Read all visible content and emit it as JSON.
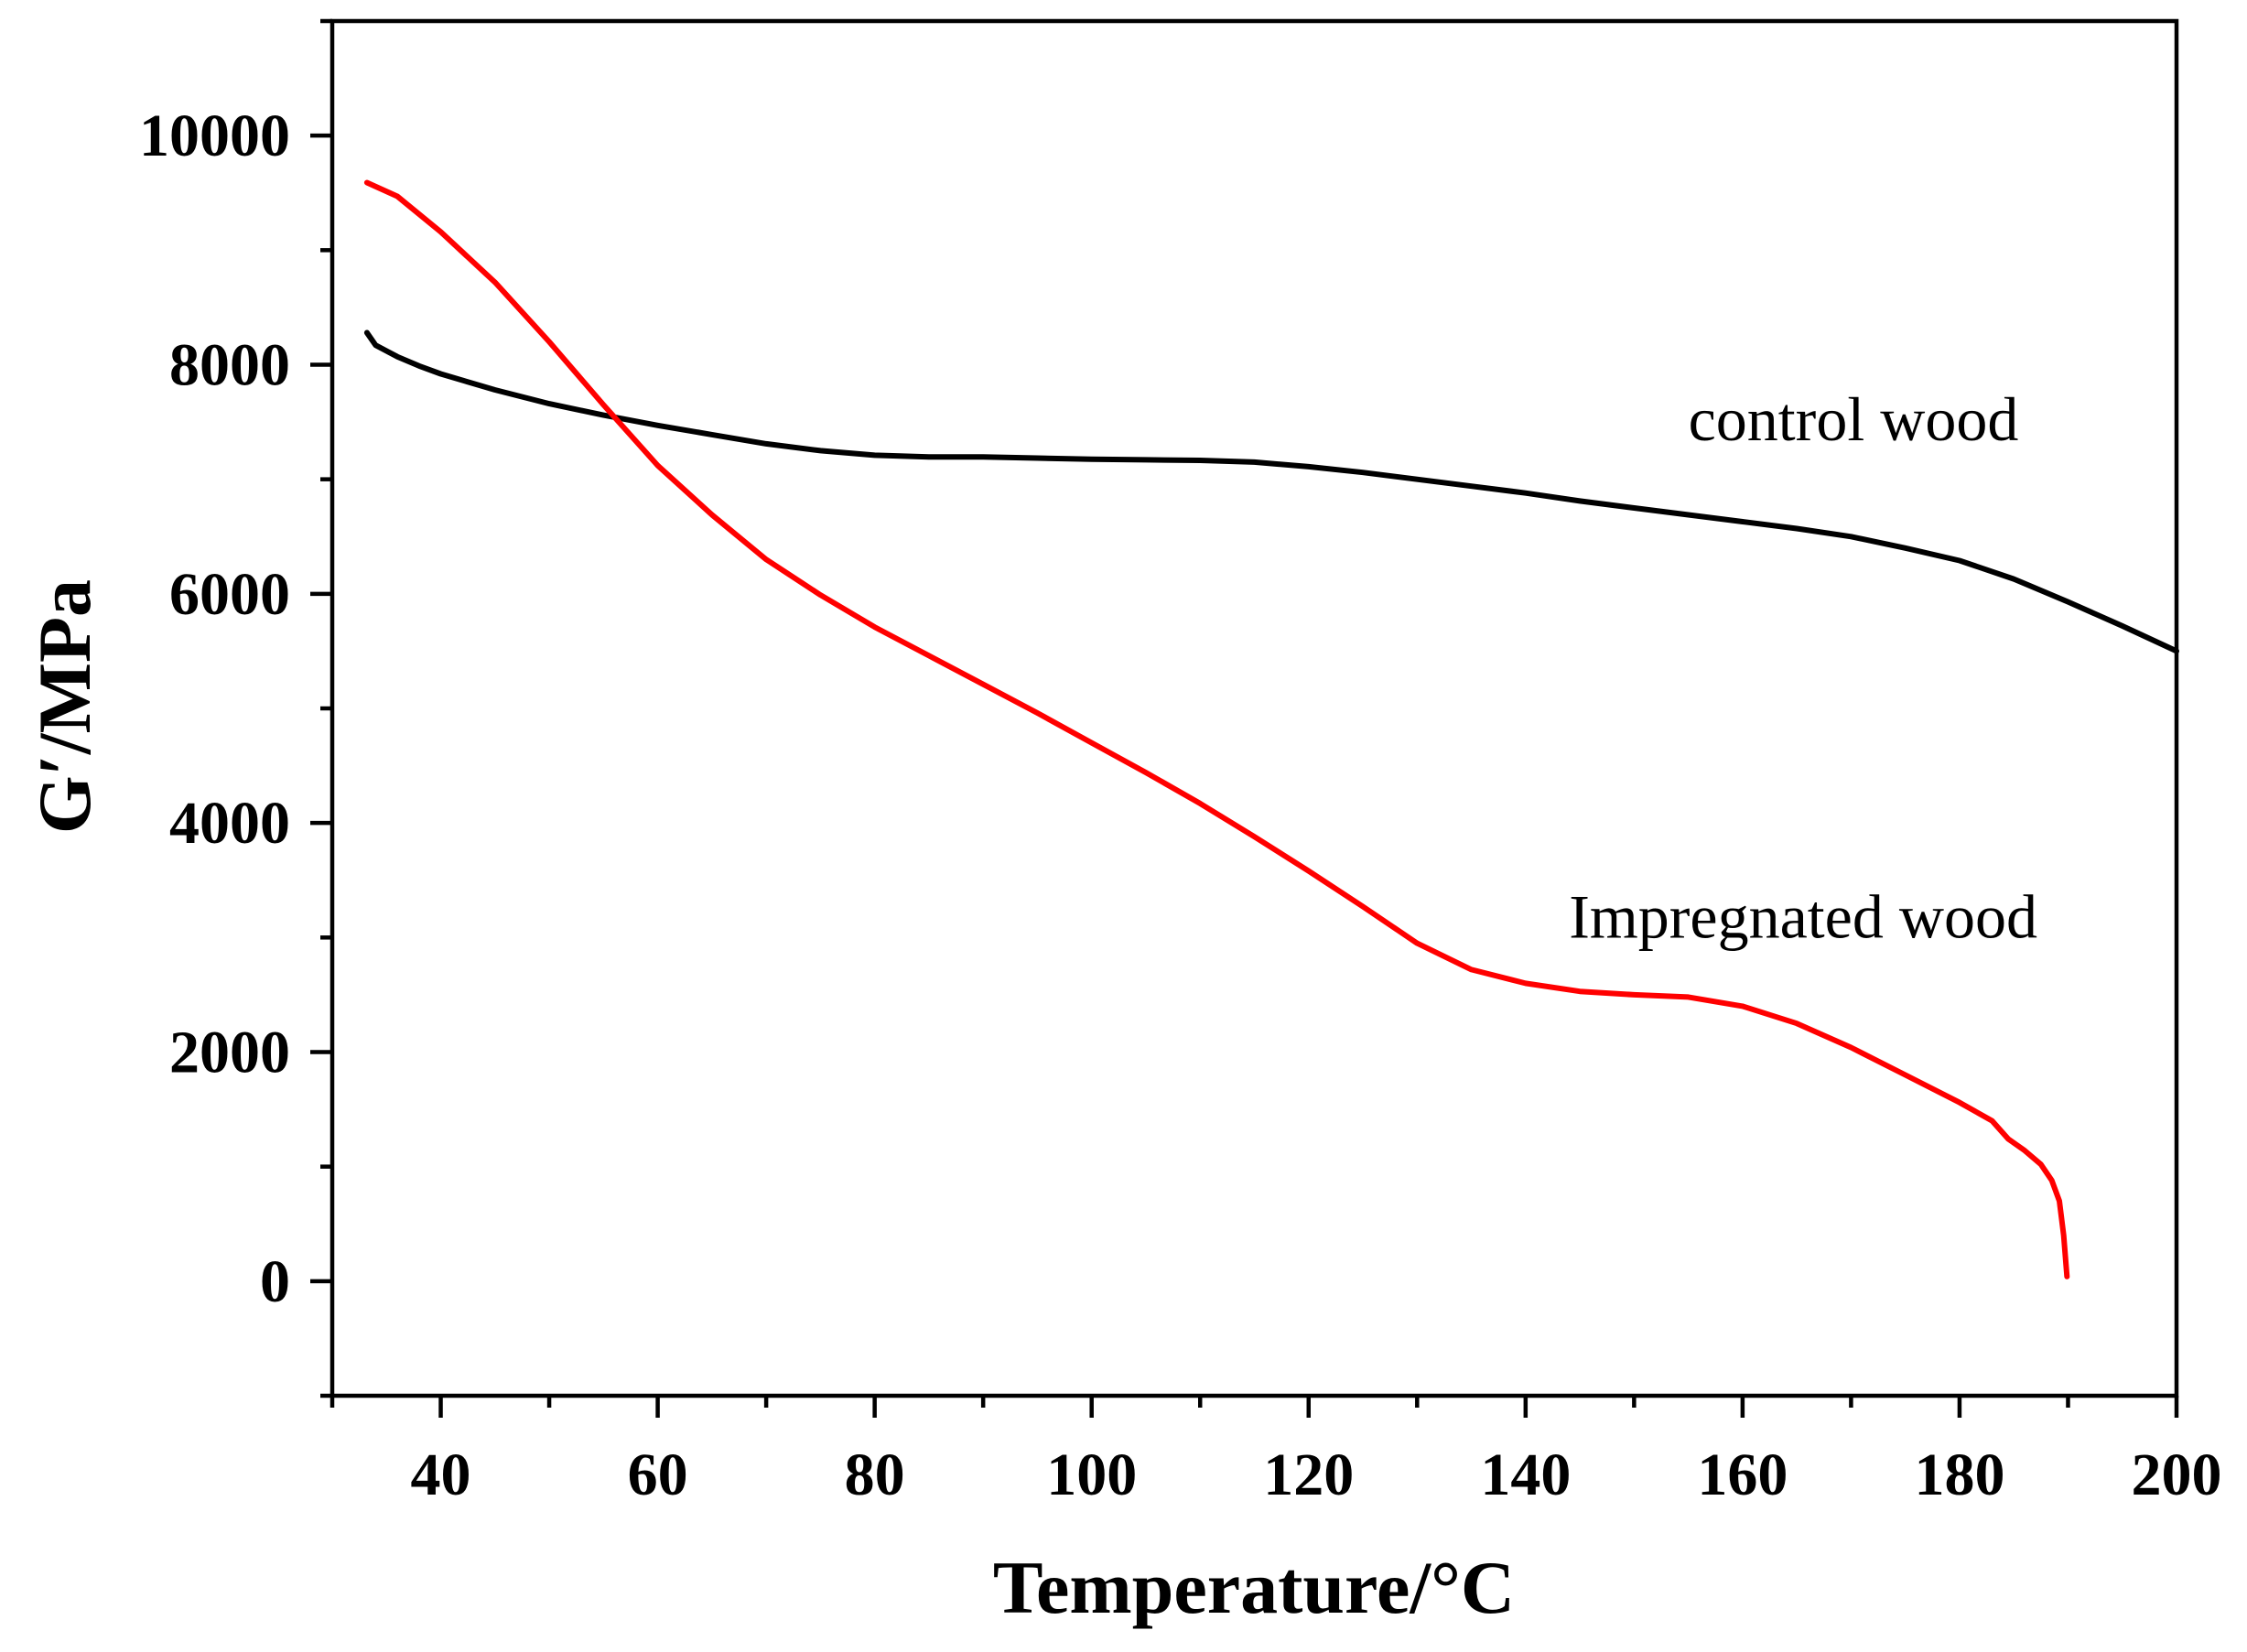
{
  "chart_data": {
    "type": "line",
    "title": "",
    "xlabel": "Temperature/°C",
    "ylabel": "G′/MPa",
    "xlim": [
      30,
      200
    ],
    "ylim": [
      -1000,
      11000
    ],
    "x_ticks": [
      40,
      60,
      80,
      100,
      120,
      140,
      160,
      180,
      200
    ],
    "y_ticks": [
      0,
      2000,
      4000,
      6000,
      8000,
      10000
    ],
    "grid": false,
    "series": [
      {
        "name": "control wood",
        "color": "#000000",
        "points": [
          [
            33.2,
            8280
          ],
          [
            34,
            8170
          ],
          [
            36,
            8070
          ],
          [
            38,
            7990
          ],
          [
            40,
            7920
          ],
          [
            45,
            7780
          ],
          [
            50,
            7660
          ],
          [
            55,
            7560
          ],
          [
            60,
            7470
          ],
          [
            65,
            7390
          ],
          [
            70,
            7310
          ],
          [
            75,
            7250
          ],
          [
            80,
            7210
          ],
          [
            85,
            7195
          ],
          [
            90,
            7195
          ],
          [
            95,
            7185
          ],
          [
            100,
            7175
          ],
          [
            105,
            7170
          ],
          [
            110,
            7165
          ],
          [
            115,
            7150
          ],
          [
            120,
            7110
          ],
          [
            125,
            7060
          ],
          [
            130,
            7000
          ],
          [
            135,
            6940
          ],
          [
            140,
            6880
          ],
          [
            145,
            6810
          ],
          [
            150,
            6750
          ],
          [
            155,
            6690
          ],
          [
            160,
            6630
          ],
          [
            165,
            6570
          ],
          [
            170,
            6500
          ],
          [
            175,
            6400
          ],
          [
            180,
            6290
          ],
          [
            185,
            6130
          ],
          [
            190,
            5930
          ],
          [
            195,
            5720
          ],
          [
            200,
            5500
          ]
        ]
      },
      {
        "name": "Impregnated wood",
        "color": "#ff0000",
        "points": [
          [
            33.2,
            9590
          ],
          [
            36,
            9470
          ],
          [
            40,
            9160
          ],
          [
            45,
            8720
          ],
          [
            50,
            8200
          ],
          [
            55,
            7650
          ],
          [
            60,
            7120
          ],
          [
            65,
            6690
          ],
          [
            70,
            6300
          ],
          [
            75,
            5990
          ],
          [
            80,
            5710
          ],
          [
            85,
            5460
          ],
          [
            90,
            5210
          ],
          [
            95,
            4960
          ],
          [
            100,
            4700
          ],
          [
            105,
            4440
          ],
          [
            110,
            4170
          ],
          [
            115,
            3880
          ],
          [
            120,
            3580
          ],
          [
            125,
            3270
          ],
          [
            130,
            2950
          ],
          [
            135,
            2720
          ],
          [
            140,
            2600
          ],
          [
            145,
            2530
          ],
          [
            150,
            2500
          ],
          [
            155,
            2480
          ],
          [
            160,
            2400
          ],
          [
            165,
            2250
          ],
          [
            170,
            2040
          ],
          [
            175,
            1800
          ],
          [
            180,
            1560
          ],
          [
            183,
            1400
          ],
          [
            184.5,
            1240
          ],
          [
            186,
            1140
          ],
          [
            187.5,
            1020
          ],
          [
            188.5,
            880
          ],
          [
            189.2,
            700
          ],
          [
            189.6,
            400
          ],
          [
            189.9,
            40
          ]
        ]
      }
    ],
    "annotations": [
      {
        "text": "control wood",
        "x": 155,
        "y": 7340
      },
      {
        "text": "Impregnated wood",
        "x": 144,
        "y": 3000
      }
    ]
  }
}
